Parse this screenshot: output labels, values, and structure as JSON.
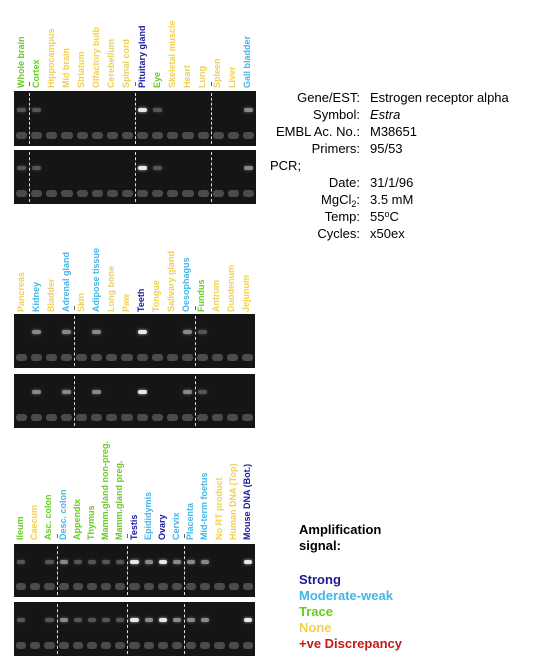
{
  "info": {
    "gene_label": "Gene/EST:",
    "gene_value": "Estrogen receptor alpha",
    "symbol_label": "Symbol:",
    "symbol_value": "Estra",
    "embl_label": "EMBL Ac. No.:",
    "embl_value": "M38651",
    "primers_label": "Primers:",
    "primers_value": "95/53",
    "pcr_label": "PCR;",
    "date_label": "Date:",
    "date_value": "31/1/96",
    "mgcl_label_main": "MgCl",
    "mgcl_label_sub": "2",
    "mgcl_label_end": ":",
    "mgcl_value": "3.5 mM",
    "temp_label": "Temp:",
    "temp_value_main": "55",
    "temp_value_sup": "o",
    "temp_value_end": "C",
    "cycles_label": "Cycles:",
    "cycles_value": "x50ex"
  },
  "legend": {
    "title_line1": "Amplification",
    "title_line2": "signal:",
    "items": [
      {
        "label": "Strong",
        "color": "#1a1a9c"
      },
      {
        "label": "Moderate-weak",
        "color": "#45b5e6"
      },
      {
        "label": "Trace",
        "color": "#66cc22"
      },
      {
        "label": "None",
        "color": "#f0d050"
      },
      {
        "label": "+ve Discrepancy",
        "color": "#c41a1a"
      }
    ]
  },
  "colors": {
    "strong": "#1a1a9c",
    "moderate": "#45b5e6",
    "trace": "#66cc22",
    "none": "#f0d050",
    "discrepancy": "#c41a1a"
  },
  "groups": [
    {
      "id": "group-1",
      "lanes": [
        {
          "label": "Whole brain",
          "signal": "trace"
        },
        {
          "label": "Cortex",
          "signal": "trace"
        },
        {
          "label": "Hippocampus",
          "signal": "none"
        },
        {
          "label": "Mid brain",
          "signal": "none"
        },
        {
          "label": "Striatum",
          "signal": "none"
        },
        {
          "label": "Olfactory bulb",
          "signal": "none"
        },
        {
          "label": "Cerebellum",
          "signal": "none"
        },
        {
          "label": "Spinal cord",
          "signal": "none"
        },
        {
          "label": "Pituitary gland",
          "signal": "strong"
        },
        {
          "label": "Eye",
          "signal": "trace"
        },
        {
          "label": "Skeletal muscle",
          "signal": "none"
        },
        {
          "label": "Heart",
          "signal": "none"
        },
        {
          "label": "Lung",
          "signal": "none"
        },
        {
          "label": "Spleen",
          "signal": "none"
        },
        {
          "label": "Liver",
          "signal": "none"
        },
        {
          "label": "Gall bladder",
          "signal": "moderate"
        }
      ],
      "dividers_after": [
        0,
        7,
        12
      ]
    },
    {
      "id": "group-2",
      "lanes": [
        {
          "label": "Pancreas",
          "signal": "none"
        },
        {
          "label": "Kidney",
          "signal": "moderate"
        },
        {
          "label": "Bladder",
          "signal": "none"
        },
        {
          "label": "Adrenal gland",
          "signal": "moderate"
        },
        {
          "label": "Skin",
          "signal": "none"
        },
        {
          "label": "Adipose tissue",
          "signal": "moderate"
        },
        {
          "label": "Long bone",
          "signal": "none"
        },
        {
          "label": "Paw",
          "signal": "none"
        },
        {
          "label": "Teeth",
          "signal": "strong"
        },
        {
          "label": "Tongue",
          "signal": "none"
        },
        {
          "label": "Salivary gland",
          "signal": "none"
        },
        {
          "label": "Oesophagus",
          "signal": "moderate"
        },
        {
          "label": "Fundus",
          "signal": "trace"
        },
        {
          "label": "Antrum",
          "signal": "none"
        },
        {
          "label": "Duodenum",
          "signal": "none"
        },
        {
          "label": "Jejunum",
          "signal": "none"
        }
      ],
      "dividers_after": [
        3,
        11
      ]
    },
    {
      "id": "group-3",
      "lanes": [
        {
          "label": "Ileum",
          "signal": "trace"
        },
        {
          "label": "Caecum",
          "signal": "none"
        },
        {
          "label": "Asc. colon",
          "signal": "trace"
        },
        {
          "label": "Desc. colon",
          "signal": "moderate"
        },
        {
          "label": "Appendix",
          "signal": "trace"
        },
        {
          "label": "Thymus",
          "signal": "trace"
        },
        {
          "label": "Mamm.gland non-preg.",
          "signal": "trace"
        },
        {
          "label": "Mamm.gland preg.",
          "signal": "trace"
        },
        {
          "label": "Testis",
          "signal": "strong"
        },
        {
          "label": "Epididymis",
          "signal": "moderate"
        },
        {
          "label": "Ovary",
          "signal": "strong"
        },
        {
          "label": "Cervix",
          "signal": "moderate"
        },
        {
          "label": "Placenta",
          "signal": "moderate"
        },
        {
          "label": "Mid-term foetus",
          "signal": "moderate"
        },
        {
          "label": "No RT product",
          "signal": "none"
        },
        {
          "label": "Human DNA (Top)",
          "signal": "none"
        },
        {
          "label": "Mouse DNA (Bot.)",
          "signal": "strong"
        }
      ],
      "dividers_after": [
        2,
        7,
        11
      ]
    }
  ]
}
